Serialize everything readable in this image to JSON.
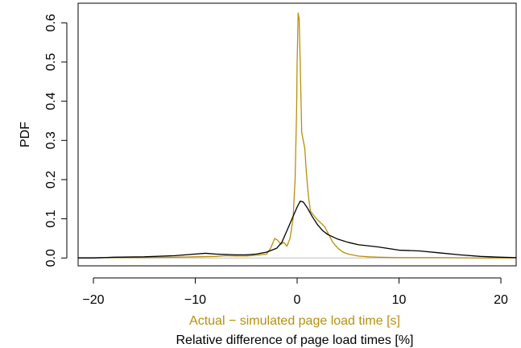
{
  "chart_data": {
    "type": "line",
    "title": "",
    "ylabel": "PDF",
    "xlabels": [
      {
        "text": "Actual − simulated page load time [s]",
        "color": "#b8900a"
      },
      {
        "text": "Relative difference of page load times [%]",
        "color": "#000000"
      }
    ],
    "xlim": [
      -21.5,
      21.5
    ],
    "ylim": [
      -0.02,
      0.65
    ],
    "xticks": [
      -20,
      -10,
      0,
      10,
      20
    ],
    "xtick_labels": [
      "−20",
      "−10",
      "0",
      "10",
      "20"
    ],
    "yticks": [
      0.0,
      0.1,
      0.2,
      0.3,
      0.4,
      0.5,
      0.6
    ],
    "ytick_labels": [
      "0.0",
      "0.1",
      "0.2",
      "0.3",
      "0.4",
      "0.5",
      "0.6"
    ],
    "baseline": 0.0,
    "grid": false,
    "legend": "none",
    "series": [
      {
        "color": "#b8900a",
        "points": [
          [
            -21.5,
            0.001
          ],
          [
            -18,
            0.001
          ],
          [
            -15,
            0.001
          ],
          [
            -12,
            0.002
          ],
          [
            -10,
            0.003
          ],
          [
            -8,
            0.004
          ],
          [
            -7,
            0.006
          ],
          [
            -6,
            0.005
          ],
          [
            -5,
            0.005
          ],
          [
            -4,
            0.007
          ],
          [
            -3,
            0.01
          ],
          [
            -2.6,
            0.025
          ],
          [
            -2.2,
            0.05
          ],
          [
            -1.9,
            0.045
          ],
          [
            -1.6,
            0.035
          ],
          [
            -1.3,
            0.04
          ],
          [
            -1.0,
            0.03
          ],
          [
            -0.7,
            0.05
          ],
          [
            -0.4,
            0.1
          ],
          [
            -0.2,
            0.2
          ],
          [
            -0.05,
            0.38
          ],
          [
            0.0,
            0.5
          ],
          [
            0.1,
            0.625
          ],
          [
            0.2,
            0.61
          ],
          [
            0.3,
            0.5
          ],
          [
            0.45,
            0.32
          ],
          [
            0.6,
            0.3
          ],
          [
            0.75,
            0.28
          ],
          [
            0.9,
            0.22
          ],
          [
            1.1,
            0.16
          ],
          [
            1.3,
            0.12
          ],
          [
            1.6,
            0.11
          ],
          [
            1.9,
            0.1
          ],
          [
            2.3,
            0.09
          ],
          [
            2.7,
            0.08
          ],
          [
            3.0,
            0.065
          ],
          [
            3.5,
            0.04
          ],
          [
            4.0,
            0.025
          ],
          [
            4.5,
            0.015
          ],
          [
            5.0,
            0.01
          ],
          [
            6.0,
            0.005
          ],
          [
            7.0,
            0.003
          ],
          [
            8.0,
            0.002
          ],
          [
            10.0,
            0.001
          ],
          [
            14.0,
            0.001
          ],
          [
            18.0,
            0.0
          ],
          [
            21.5,
            0.0
          ]
        ]
      },
      {
        "color": "#000000",
        "points": [
          [
            -21.5,
            0.0
          ],
          [
            -20,
            0.0
          ],
          [
            -18,
            0.002
          ],
          [
            -15,
            0.003
          ],
          [
            -12,
            0.006
          ],
          [
            -10,
            0.01
          ],
          [
            -9,
            0.012
          ],
          [
            -8,
            0.01
          ],
          [
            -7,
            0.009
          ],
          [
            -6,
            0.008
          ],
          [
            -5,
            0.008
          ],
          [
            -4,
            0.01
          ],
          [
            -3,
            0.015
          ],
          [
            -2,
            0.025
          ],
          [
            -1.5,
            0.04
          ],
          [
            -1.0,
            0.07
          ],
          [
            -0.5,
            0.1
          ],
          [
            0.0,
            0.13
          ],
          [
            0.3,
            0.145
          ],
          [
            0.6,
            0.143
          ],
          [
            1.0,
            0.128
          ],
          [
            1.5,
            0.105
          ],
          [
            2.0,
            0.085
          ],
          [
            2.5,
            0.07
          ],
          [
            3.0,
            0.06
          ],
          [
            4.0,
            0.048
          ],
          [
            5.0,
            0.04
          ],
          [
            6.0,
            0.034
          ],
          [
            8.0,
            0.028
          ],
          [
            10.0,
            0.02
          ],
          [
            12.0,
            0.018
          ],
          [
            14.0,
            0.013
          ],
          [
            16.0,
            0.008
          ],
          [
            18.0,
            0.004
          ],
          [
            20.0,
            0.002
          ],
          [
            21.5,
            0.001
          ]
        ]
      }
    ]
  }
}
